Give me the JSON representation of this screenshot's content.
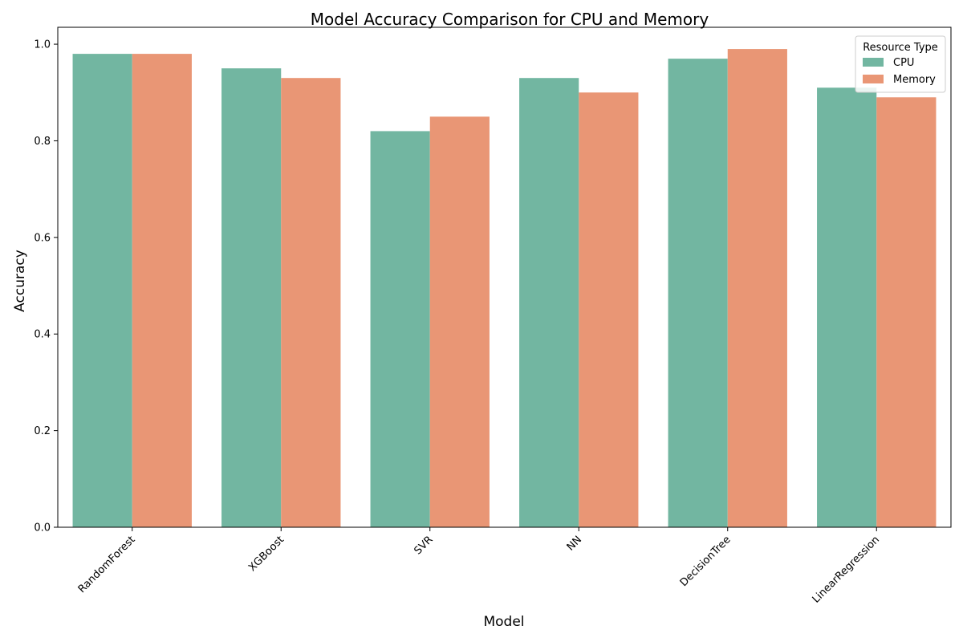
{
  "chart_data": {
    "type": "bar",
    "title": "Model Accuracy Comparison for CPU and Memory",
    "xlabel": "Model",
    "ylabel": "Accuracy",
    "categories": [
      "RandomForest",
      "XGBoost",
      "SVR",
      "NN",
      "DecisionTree",
      "LinearRegression"
    ],
    "series": [
      {
        "name": "CPU",
        "color": "#72b6a1",
        "values": [
          0.98,
          0.95,
          0.82,
          0.93,
          0.97,
          0.91
        ]
      },
      {
        "name": "Memory",
        "color": "#e99675",
        "values": [
          0.98,
          0.93,
          0.85,
          0.9,
          0.99,
          0.89
        ]
      }
    ],
    "ylim": [
      0,
      1.035
    ],
    "yticks": [
      "0.0",
      "0.2",
      "0.4",
      "0.6",
      "0.8",
      "1.0"
    ],
    "grid": false,
    "legend": {
      "title": "Resource Type",
      "placement": "top-right"
    }
  }
}
